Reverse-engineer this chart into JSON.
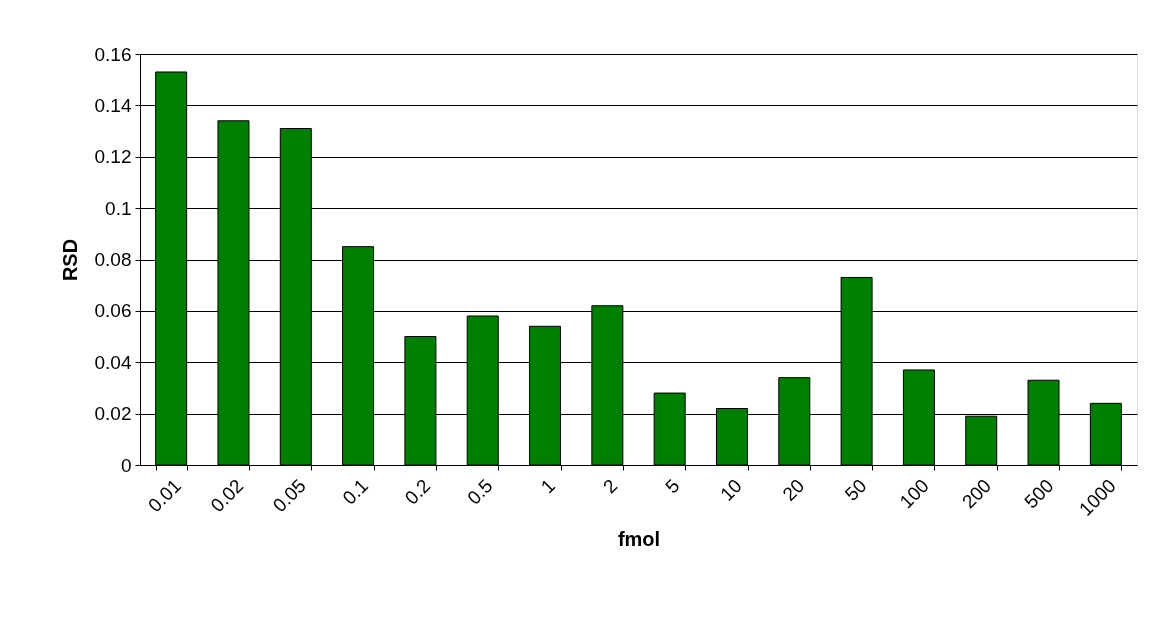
{
  "chart_data": {
    "type": "bar",
    "xlabel": "fmol",
    "ylabel": "RSD",
    "categories": [
      "0.01",
      "0.02",
      "0.05",
      "0.1",
      "0.2",
      "0.5",
      "1",
      "2",
      "5",
      "10",
      "20",
      "50",
      "100",
      "200",
      "500",
      "1000"
    ],
    "values": [
      0.153,
      0.134,
      0.131,
      0.085,
      0.05,
      0.058,
      0.054,
      0.062,
      0.028,
      0.022,
      0.034,
      0.073,
      0.037,
      0.019,
      0.033,
      0.024
    ],
    "color": "#008000",
    "ylim": [
      0,
      0.16
    ],
    "yticks": [
      0,
      0.02,
      0.04,
      0.06,
      0.08,
      0.1,
      0.12,
      0.14,
      0.16
    ],
    "grid": "y"
  }
}
